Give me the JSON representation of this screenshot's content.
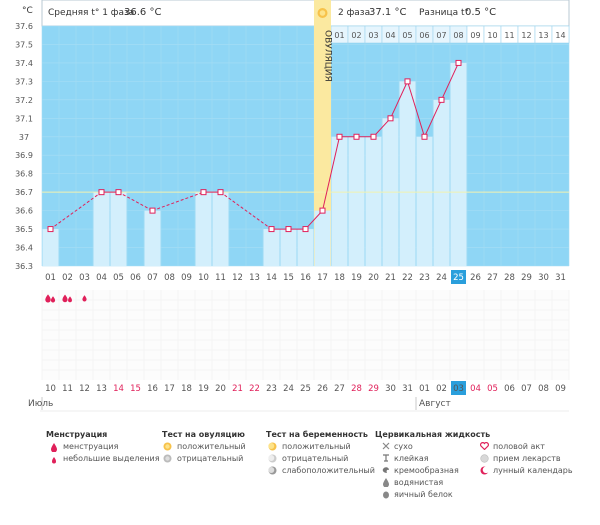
{
  "unit_label": "°C",
  "header": {
    "phase1_label": "Средняя t° 1 фаза",
    "phase1_value": "36.6 °C",
    "phase2_label": "2 фаза",
    "phase2_value": "37.1 °C",
    "diff_label": "Разница t°",
    "diff_value": "0.5 °C",
    "ovulation_label": "ОВУЛЯЦИЯ",
    "sun_icon": "sun-icon"
  },
  "colors": {
    "chart_bg": "#8fd6f5",
    "bar_fill": "#d3effc",
    "line": "#e0205a",
    "ovulation": "#fbe9a0",
    "coverline": "#f2f2b0",
    "today": "#2a9fdc"
  },
  "chart_data": {
    "type": "line",
    "ylim": [
      36.3,
      37.6
    ],
    "y_ticks": [
      "36.3",
      "36.4",
      "36.5",
      "36.6",
      "36.7",
      "36.8",
      "36.9",
      "37",
      "37.1",
      "37.2",
      "37.3",
      "37.4",
      "37.5",
      "37.6"
    ],
    "coverline": 36.7,
    "x_labels": [
      "01",
      "02",
      "03",
      "04",
      "05",
      "06",
      "07",
      "08",
      "09",
      "10",
      "11",
      "12",
      "13",
      "14",
      "15",
      "16",
      "17",
      "18",
      "19",
      "20",
      "21",
      "22",
      "23",
      "24",
      "25",
      "26",
      "27",
      "28",
      "29",
      "30",
      "31"
    ],
    "temps": [
      36.5,
      null,
      null,
      36.7,
      36.7,
      null,
      36.6,
      null,
      null,
      36.7,
      36.7,
      null,
      null,
      36.5,
      36.5,
      36.5,
      36.6,
      37.0,
      37.0,
      37.0,
      37.1,
      37.3,
      37.0,
      37.2,
      37.4,
      null,
      null,
      null,
      null,
      null,
      null
    ],
    "ovulation_index": 16,
    "today_index": 24,
    "phase2_days": [
      "01",
      "02",
      "03",
      "04",
      "05",
      "06",
      "07",
      "08",
      "09",
      "10",
      "11",
      "12",
      "13",
      "14"
    ],
    "menstruation": [
      "heavy",
      "heavy-light",
      "light",
      "",
      "",
      "",
      "",
      "",
      "",
      "",
      "",
      "",
      "",
      "",
      "",
      "",
      "",
      "",
      "",
      "",
      "",
      "",
      "",
      "",
      "",
      "",
      "",
      "",
      "",
      "",
      ""
    ],
    "calendar_dates": [
      "10",
      "11",
      "12",
      "13",
      "14",
      "15",
      "16",
      "17",
      "18",
      "19",
      "20",
      "21",
      "22",
      "23",
      "24",
      "25",
      "26",
      "27",
      "28",
      "29",
      "30",
      "31",
      "01",
      "02",
      "03",
      "04",
      "05",
      "06",
      "07",
      "08",
      "09"
    ],
    "weekend_indices": [
      4,
      5,
      11,
      12,
      18,
      19,
      25,
      26
    ],
    "month_labels": [
      {
        "index": 0,
        "text": "Июль"
      },
      {
        "index": 22,
        "text": "Август"
      }
    ]
  },
  "legend": {
    "menstruation": {
      "title": "Менструация",
      "items": [
        "менструация",
        "небольшие выделения"
      ],
      "icons": [
        "drop-icon",
        "small-drop-icon"
      ]
    },
    "ovulation_test": {
      "title": "Тест на овуляцию",
      "items": [
        "положительный",
        "отрицательный"
      ],
      "icons": [
        "sun-icon",
        "sun-grey-icon"
      ]
    },
    "pregnancy_test": {
      "title": "Тест на беременность",
      "items": [
        "положительный",
        "отрицательный",
        "слабоположительный"
      ],
      "icons": [
        "moon-face-icon",
        "moon-grey-icon",
        "moon-weak-icon"
      ]
    },
    "cervical": {
      "title": "Цервикальная жидкость",
      "items": [
        "сухо",
        "клейкая",
        "кремообразная",
        "водянистая",
        "яичный белок"
      ],
      "icons": [
        "cross-icon",
        "sticky-icon",
        "creamy-icon",
        "watery-drop-icon",
        "egg-white-icon"
      ]
    },
    "other": {
      "items": [
        "половой акт",
        "прием лекарств",
        "лунный календарь"
      ],
      "icons": [
        "heart-icon",
        "pill-icon",
        "moon-icon"
      ]
    }
  }
}
